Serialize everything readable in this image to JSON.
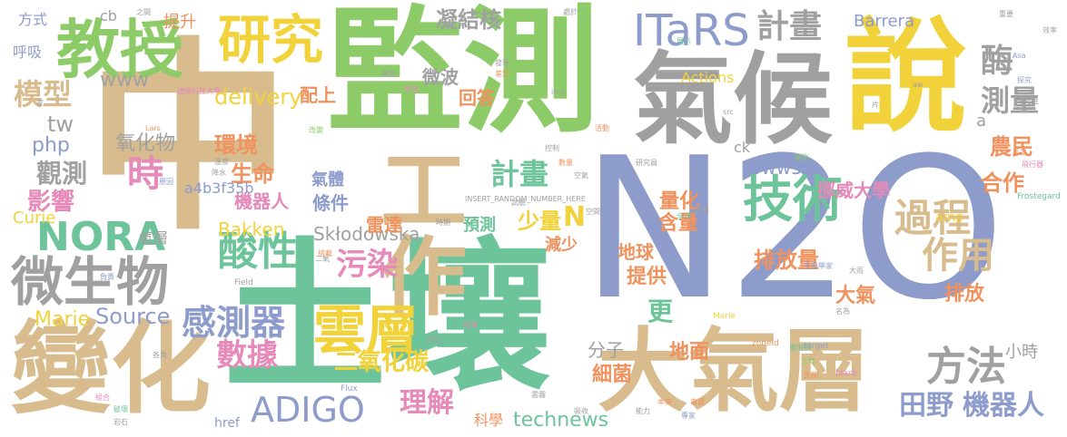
{
  "palette": {
    "tan": "#d8bc8d",
    "green": "#8dcb68",
    "teal": "#6ec49a",
    "blue": "#8d9ccb",
    "gray": "#a0a0a0",
    "yellow": "#f2d23a",
    "pink": "#e58ab9",
    "orange": "#f0925e"
  },
  "words": [
    {
      "text": "中",
      "color": "#d8bc8d"
    },
    {
      "text": "土壤",
      "color": "#6ec49a"
    },
    {
      "text": "N2O",
      "color": "#8d9ccb"
    },
    {
      "text": "監測",
      "color": "#8dcb68"
    },
    {
      "text": "氣候",
      "color": "#a0a0a0"
    },
    {
      "text": "說",
      "color": "#f2d23a"
    },
    {
      "text": "大氣層",
      "color": "#d8bc8d"
    },
    {
      "text": "變化",
      "color": "#d8bc8d"
    },
    {
      "text": "工作",
      "color": "#d8bc8d"
    },
    {
      "text": "教授",
      "color": "#8dcb68"
    },
    {
      "text": "研究",
      "color": "#f2d23a"
    },
    {
      "text": "微生物",
      "color": "#a0a0a0"
    },
    {
      "text": "雲層",
      "color": "#f2d23a"
    },
    {
      "text": "ITaRS",
      "color": "#8d9ccb"
    },
    {
      "text": "計畫",
      "color": "#a0a0a0"
    },
    {
      "text": "NORA",
      "color": "#6ec49a"
    },
    {
      "text": "技術",
      "color": "#6ec49a"
    },
    {
      "text": "過程",
      "color": "#d8bc8d"
    },
    {
      "text": "作用",
      "color": "#d8bc8d"
    },
    {
      "text": "酸性",
      "color": "#6ec49a"
    },
    {
      "text": "感測器",
      "color": "#8d9ccb"
    },
    {
      "text": "方法",
      "color": "#a0a0a0"
    },
    {
      "text": "ADIGO",
      "color": "#8d9ccb"
    },
    {
      "text": "數據",
      "color": "#e58ab9"
    },
    {
      "text": "理解",
      "color": "#e58ab9"
    },
    {
      "text": "計畫",
      "color": "#6ec49a"
    },
    {
      "text": "模型",
      "color": "#d8bc8d"
    },
    {
      "text": "測量",
      "color": "#a0a0a0"
    },
    {
      "text": "酶",
      "color": "#a0a0a0"
    },
    {
      "text": "污染",
      "color": "#e58ab9"
    },
    {
      "text": "時",
      "color": "#e58ab9"
    },
    {
      "text": "環境",
      "color": "#f0925e"
    },
    {
      "text": "生命",
      "color": "#f0925e"
    },
    {
      "text": "觀測",
      "color": "#a0a0a0"
    },
    {
      "text": "影響",
      "color": "#e58ab9"
    },
    {
      "text": "氧化物",
      "color": "#a0a0a0"
    },
    {
      "text": "delivery",
      "color": "#f2d23a"
    },
    {
      "text": "www",
      "color": "#a0a0a0"
    },
    {
      "text": "tw",
      "color": "#a0a0a0"
    },
    {
      "text": "php",
      "color": "#8d9ccb"
    },
    {
      "text": "Curie",
      "color": "#f2d23a"
    },
    {
      "text": "Marie",
      "color": "#f2d23a"
    },
    {
      "text": "Source",
      "color": "#8d9ccb"
    },
    {
      "text": "Bakken",
      "color": "#f2d23a"
    },
    {
      "text": "Skłodowska",
      "color": "#a0a0a0"
    },
    {
      "text": "technews",
      "color": "#6ec49a"
    },
    {
      "text": "田野",
      "color": "#8d9ccb"
    },
    {
      "text": "機器人",
      "color": "#8d9ccb"
    },
    {
      "text": "機器人",
      "color": "#e58ab9"
    },
    {
      "text": "二氧化碳",
      "color": "#f2d23a"
    },
    {
      "text": "排放量",
      "color": "#f0925e"
    },
    {
      "text": "挪威大學",
      "color": "#e58ab9"
    },
    {
      "text": "www5",
      "color": "#8d9ccb"
    },
    {
      "text": "農民",
      "color": "#f0925e"
    },
    {
      "text": "合作",
      "color": "#f0925e"
    },
    {
      "text": "大氣",
      "color": "#f0925e"
    },
    {
      "text": "排放",
      "color": "#f0925e"
    },
    {
      "text": "更",
      "color": "#6ec49a"
    },
    {
      "text": "地球",
      "color": "#f0925e"
    },
    {
      "text": "提供",
      "color": "#f0925e"
    },
    {
      "text": "細菌",
      "color": "#f0925e"
    },
    {
      "text": "地面",
      "color": "#f0925e"
    },
    {
      "text": "分子",
      "color": "#a0a0a0"
    },
    {
      "text": "量化",
      "color": "#f0925e"
    },
    {
      "text": "含量",
      "color": "#f0925e"
    },
    {
      "text": "少量",
      "color": "#f2d23a"
    },
    {
      "text": "N",
      "color": "#f2d23a"
    },
    {
      "text": "預測",
      "color": "#6ec49a"
    },
    {
      "text": "條件",
      "color": "#8d9ccb"
    },
    {
      "text": "氣體",
      "color": "#8d9ccb"
    },
    {
      "text": "雷達",
      "color": "#f0925e"
    },
    {
      "text": "減少",
      "color": "#f0925e"
    },
    {
      "text": "a4b3f35b",
      "color": "#8d9ccb"
    },
    {
      "text": "凝結核",
      "color": "#a0a0a0"
    },
    {
      "text": "微波",
      "color": "#a0a0a0"
    },
    {
      "text": "回答",
      "color": "#f0925e"
    },
    {
      "text": "配上",
      "color": "#f0925e"
    },
    {
      "text": "Barrera",
      "color": "#8d9ccb"
    },
    {
      "text": "Actions",
      "color": "#f2d23a"
    },
    {
      "text": "小時",
      "color": "#a0a0a0"
    },
    {
      "text": "氣層",
      "color": "#a0a0a0"
    },
    {
      "text": "呼吸",
      "color": "#8d9ccb"
    },
    {
      "text": "方式",
      "color": "#8d9ccb"
    },
    {
      "text": "cb",
      "color": "#a0a0a0"
    },
    {
      "text": "提升",
      "color": "#f0925e"
    },
    {
      "text": "ck",
      "color": "#a0a0a0"
    },
    {
      "text": "科學",
      "color": "#f0925e"
    },
    {
      "text": "href",
      "color": "#8d9ccb"
    },
    {
      "text": "a",
      "color": "#a0a0a0"
    },
    {
      "text": "amp",
      "color": "#f2d23a"
    },
    {
      "text": "INSERT_RANDOM_NUMBER_HERE",
      "color": "#a0a0a0"
    },
    {
      "text": "Field",
      "color": "#a0a0a0"
    },
    {
      "text": "Flux",
      "color": "#8d9ccb"
    },
    {
      "text": "Frostegard",
      "color": "#6ec49a"
    },
    {
      "text": "zoneid",
      "color": "#f0925e"
    },
    {
      "text": "target",
      "color": "#8d9ccb"
    },
    {
      "text": "blank",
      "color": "#e58ab9"
    },
    {
      "text": "Marie",
      "color": "#f2d23a"
    },
    {
      "text": "src",
      "color": "#a0a0a0"
    },
    {
      "text": "img",
      "color": "#a0a0a0"
    },
    {
      "text": "Asa",
      "color": "#8d9ccb"
    },
    {
      "text": "aw",
      "color": "#a0a0a0"
    },
    {
      "text": "Lars",
      "color": "#f0925e"
    },
    {
      "text": "研究員",
      "color": "#a0a0a0"
    },
    {
      "text": "德國科技大學",
      "color": "#e58ab9"
    },
    {
      "text": "效率",
      "color": "#a0a0a0"
    },
    {
      "text": "探究",
      "color": "#8d9ccb"
    },
    {
      "text": "確定性",
      "color": "#a0a0a0"
    },
    {
      "text": "飛行器",
      "color": "#e58ab9"
    },
    {
      "text": "生態學家",
      "color": "#8d9ccb"
    },
    {
      "text": "動物質",
      "color": "#6ec49a"
    },
    {
      "text": "大雨",
      "color": "#a0a0a0"
    },
    {
      "text": "土地",
      "color": "#8dcb68"
    },
    {
      "text": "生物",
      "color": "#f0925e"
    },
    {
      "text": "氧化",
      "color": "#8d9ccb"
    },
    {
      "text": "全球",
      "color": "#6ec49a"
    },
    {
      "text": "數值",
      "color": "#a0a0a0"
    },
    {
      "text": "試驗",
      "color": "#a0a0a0"
    },
    {
      "text": "時期",
      "color": "#a0a0a0"
    },
    {
      "text": "能力",
      "color": "#a0a0a0"
    },
    {
      "text": "吸收",
      "color": "#a0a0a0"
    },
    {
      "text": "雲霧",
      "color": "#a0a0a0"
    },
    {
      "text": "本來",
      "color": "#f0925e"
    },
    {
      "text": "岩石",
      "color": "#a0a0a0"
    },
    {
      "text": "破壞",
      "color": "#6ec49a"
    },
    {
      "text": "組合",
      "color": "#e58ab9"
    },
    {
      "text": "各角",
      "color": "#a0a0a0"
    },
    {
      "text": "負責",
      "color": "#8d9ccb"
    },
    {
      "text": "二氧",
      "color": "#a0a0a0"
    },
    {
      "text": "搭載",
      "color": "#f0925e"
    },
    {
      "text": "溫度",
      "color": "#a0a0a0"
    },
    {
      "text": "蒸發",
      "color": "#e58ab9"
    },
    {
      "text": "原因",
      "color": "#8d9ccb"
    },
    {
      "text": "降水",
      "color": "#a0a0a0"
    },
    {
      "text": "改變",
      "color": "#8dcb68"
    },
    {
      "text": "活動",
      "color": "#f0925e"
    },
    {
      "text": "空氣",
      "color": "#a0a0a0"
    },
    {
      "text": "數量",
      "color": "#f0925e"
    },
    {
      "text": "學院",
      "color": "#a0a0a0"
    },
    {
      "text": "專家",
      "color": "#8d9ccb"
    },
    {
      "text": "事實",
      "color": "#f0925e"
    },
    {
      "text": "重要",
      "color": "#a0a0a0"
    },
    {
      "text": "發現",
      "color": "#a0a0a0"
    },
    {
      "text": "差別",
      "color": "#f0925e"
    },
    {
      "text": "處於",
      "color": "#a0a0a0"
    },
    {
      "text": "展示",
      "color": "#6ec49a"
    },
    {
      "text": "鎖定",
      "color": "#a0a0a0"
    },
    {
      "text": "變化",
      "color": "#8dcb68"
    },
    {
      "text": "探測",
      "color": "#e58ab9"
    },
    {
      "text": "手工",
      "color": "#f0925e"
    },
    {
      "text": "空間",
      "color": "#a0a0a0"
    },
    {
      "text": "之間",
      "color": "#a0a0a0"
    },
    {
      "text": "家",
      "color": "#a0a0a0"
    },
    {
      "text": "片",
      "color": "#a0a0a0"
    },
    {
      "text": "名為",
      "color": "#a0a0a0"
    },
    {
      "text": "控制",
      "color": "#a0a0a0"
    }
  ]
}
